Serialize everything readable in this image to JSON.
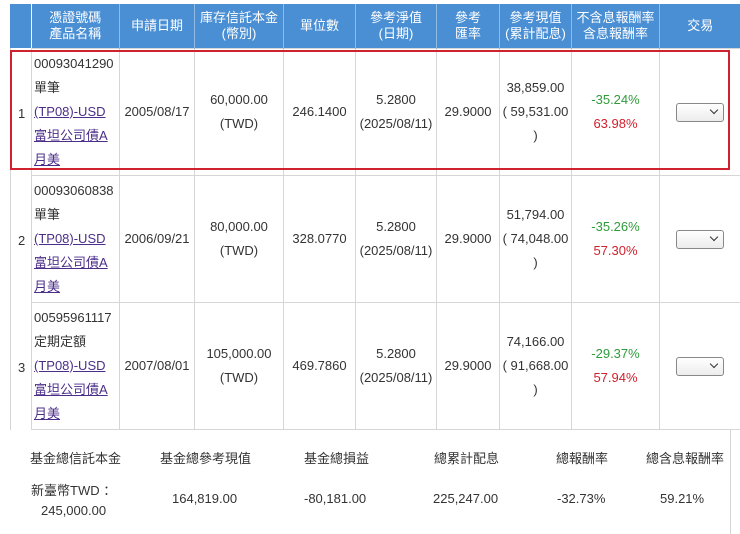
{
  "table": {
    "headers": [
      {
        "line1": "憑證號碼",
        "line2": "產品名稱"
      },
      {
        "line1": "申請日期",
        "line2": ""
      },
      {
        "line1": "庫存信託本金",
        "line2": "(幣別)"
      },
      {
        "line1": "單位數",
        "line2": ""
      },
      {
        "line1": "參考淨值",
        "line2": "(日期)"
      },
      {
        "line1": "參考",
        "line2": "匯率"
      },
      {
        "line1": "參考現值",
        "line2": "(累計配息)"
      },
      {
        "line1": "不含息報酬率",
        "line2": "含息報酬率"
      },
      {
        "line1": "交易",
        "line2": ""
      }
    ],
    "rows": [
      {
        "index": "1",
        "cert_no": "00093041290",
        "type": "單筆",
        "fund_code": "(TP08)-USD",
        "fund_name_1": "富坦公司債A",
        "fund_name_2": "月美",
        "apply_date": "2005/08/17",
        "principal": "60,000.00",
        "currency": "(TWD)",
        "units": "246.1400",
        "nav": "5.2800",
        "nav_date": "(2025/08/11)",
        "rate": "29.9000",
        "value": "38,859.00",
        "dividend": "( 59,531.00",
        "dividend_close": ")",
        "ret_ex": "-35.24%",
        "ret_in": "63.98%"
      },
      {
        "index": "2",
        "cert_no": "00093060838",
        "type": "單筆",
        "fund_code": "(TP08)-USD",
        "fund_name_1": "富坦公司債A",
        "fund_name_2": "月美",
        "apply_date": "2006/09/21",
        "principal": "80,000.00",
        "currency": "(TWD)",
        "units": "328.0770",
        "nav": "5.2800",
        "nav_date": "(2025/08/11)",
        "rate": "29.9000",
        "value": "51,794.00",
        "dividend": "( 74,048.00",
        "dividend_close": ")",
        "ret_ex": "-35.26%",
        "ret_in": "57.30%"
      },
      {
        "index": "3",
        "cert_no": "00595961117",
        "type": "定期定額",
        "fund_code": "(TP08)-USD",
        "fund_name_1": "富坦公司債A",
        "fund_name_2": "月美",
        "apply_date": "2007/08/01",
        "principal": "105,000.00",
        "currency": "(TWD)",
        "units": "469.7860",
        "nav": "5.2800",
        "nav_date": "(2025/08/11)",
        "rate": "29.9000",
        "value": "74,166.00",
        "dividend": "( 91,668.00",
        "dividend_close": ")",
        "ret_ex": "-29.37%",
        "ret_in": "57.94%"
      }
    ]
  },
  "summary": {
    "h_principal": "基金總信託本金",
    "h_value": "基金總參考現值",
    "h_pl": "基金總損益",
    "h_dividend": "總累計配息",
    "h_return": "總報酬率",
    "h_return_div": "總含息報酬率",
    "v_principal_1": "新臺幣TWD ：",
    "v_principal_2": "245,000.00",
    "v_value": "164,819.00",
    "v_pl": "-80,181.00",
    "v_dividend": "225,247.00",
    "v_return": "-32.73%",
    "v_return_div": "59.21%"
  },
  "colors": {
    "header_bg": "#4a8fd4",
    "negative": "#2e9b3a",
    "positive": "#d0212e",
    "link": "#4b2e8a",
    "highlight": "#d0212e"
  }
}
